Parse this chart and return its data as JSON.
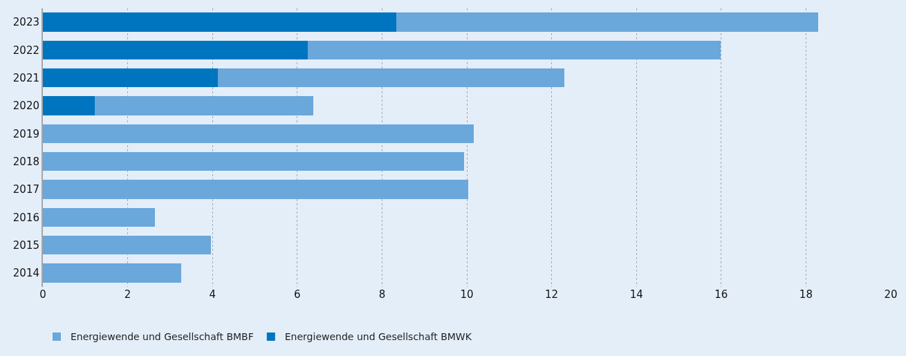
{
  "chart_data": {
    "type": "bar",
    "orientation": "horizontal",
    "stacked": true,
    "categories": [
      "2023",
      "2022",
      "2021",
      "2020",
      "2019",
      "2018",
      "2017",
      "2016",
      "2015",
      "2014"
    ],
    "series": [
      {
        "name": "Energiewende und Gesellschaft BMWK",
        "color": "#0075bf",
        "values": [
          8.33,
          6.25,
          4.12,
          1.23,
          0,
          0,
          0,
          0,
          0,
          0
        ]
      },
      {
        "name": "Energiewende und Gesellschaft BMBF",
        "color": "#6aa7db",
        "values": [
          9.96,
          9.73,
          8.18,
          5.15,
          10.16,
          9.94,
          10.04,
          2.64,
          3.96,
          3.26
        ]
      }
    ],
    "xlim": [
      0,
      20
    ],
    "xticks": [
      0,
      2,
      4,
      6,
      8,
      10,
      12,
      14,
      16,
      18,
      20
    ],
    "grid": "x",
    "legend": "bottom left"
  }
}
